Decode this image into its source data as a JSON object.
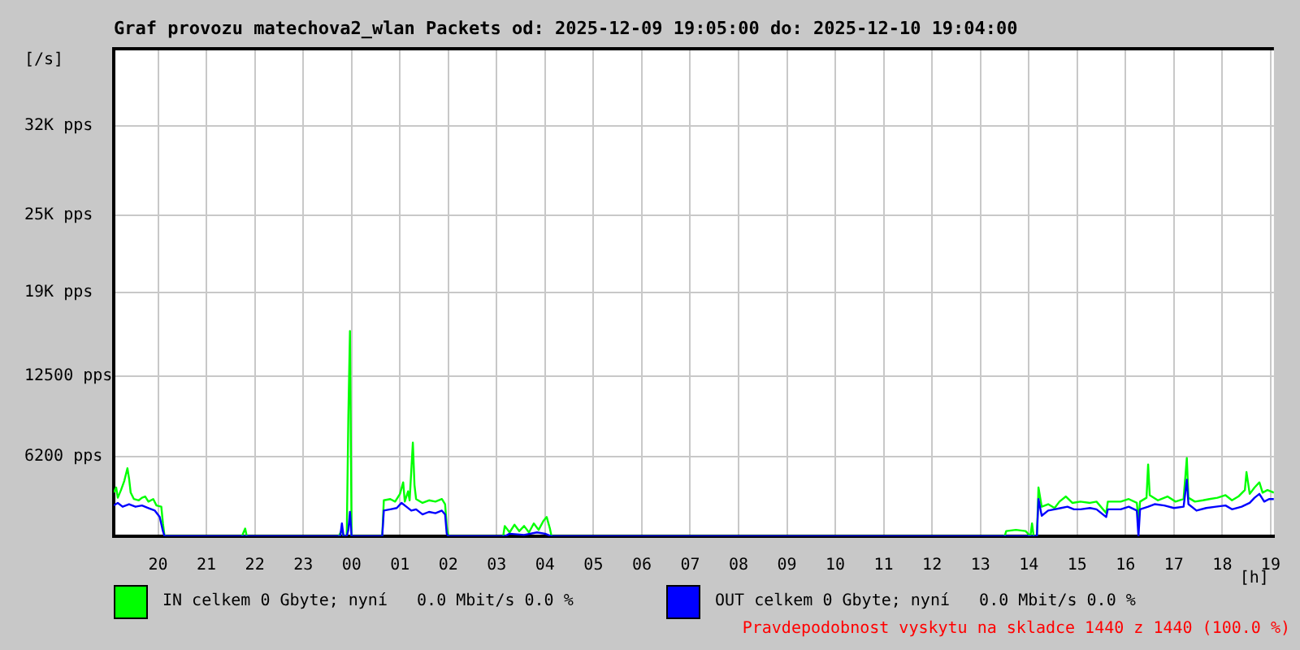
{
  "chart_data": {
    "type": "line",
    "title": "Graf provozu matechova2_wlan Packets od: 2025-12-09 19:05:00 do: 2025-12-10 19:04:00",
    "ylabel": "[/s]",
    "xlabel": "[h]",
    "xlim": [
      "2025-12-09T19:05",
      "2025-12-10T19:04"
    ],
    "xticks": [
      {
        "value": "2025-12-09T20:00",
        "label": "20"
      },
      {
        "value": "2025-12-09T21:00",
        "label": "21"
      },
      {
        "value": "2025-12-09T22:00",
        "label": "22"
      },
      {
        "value": "2025-12-09T23:00",
        "label": "23"
      },
      {
        "value": "2025-12-10T00:00",
        "label": "00"
      },
      {
        "value": "2025-12-10T01:00",
        "label": "01"
      },
      {
        "value": "2025-12-10T02:00",
        "label": "02"
      },
      {
        "value": "2025-12-10T03:00",
        "label": "03"
      },
      {
        "value": "2025-12-10T04:00",
        "label": "04"
      },
      {
        "value": "2025-12-10T05:00",
        "label": "05"
      },
      {
        "value": "2025-12-10T06:00",
        "label": "06"
      },
      {
        "value": "2025-12-10T07:00",
        "label": "07"
      },
      {
        "value": "2025-12-10T08:00",
        "label": "08"
      },
      {
        "value": "2025-12-10T09:00",
        "label": "09"
      },
      {
        "value": "2025-12-10T10:00",
        "label": "10"
      },
      {
        "value": "2025-12-10T11:00",
        "label": "11"
      },
      {
        "value": "2025-12-10T12:00",
        "label": "12"
      },
      {
        "value": "2025-12-10T13:00",
        "label": "13"
      },
      {
        "value": "2025-12-10T14:00",
        "label": "14"
      },
      {
        "value": "2025-12-10T15:00",
        "label": "15"
      },
      {
        "value": "2025-12-10T16:00",
        "label": "16"
      },
      {
        "value": "2025-12-10T17:00",
        "label": "17"
      },
      {
        "value": "2025-12-10T18:00",
        "label": "18"
      },
      {
        "value": "2025-12-10T19:00",
        "label": "19"
      }
    ],
    "ylim": [
      0,
      38000
    ],
    "yticks": [
      {
        "value": 6200,
        "label": "6200 pps"
      },
      {
        "value": 12500,
        "label": "12500 pps"
      },
      {
        "value": 19000,
        "label": "19K pps"
      },
      {
        "value": 25000,
        "label": "25K pps"
      },
      {
        "value": 32000,
        "label": "32K pps"
      }
    ],
    "grid": true,
    "legend": "bottom",
    "series": [
      {
        "name": "IN celkem 0 Gbyte; nyní   0.0 Mbit/s 0.0 %",
        "color": "#00ff00",
        "x": [
          "2025-12-09T19:05",
          "2025-12-09T19:08",
          "2025-12-09T19:10",
          "2025-12-09T19:14",
          "2025-12-09T19:18",
          "2025-12-09T19:22",
          "2025-12-09T19:24",
          "2025-12-09T19:26",
          "2025-12-09T19:30",
          "2025-12-09T19:36",
          "2025-12-09T19:40",
          "2025-12-09T19:44",
          "2025-12-09T19:48",
          "2025-12-09T19:54",
          "2025-12-09T19:58",
          "2025-12-09T20:04",
          "2025-12-09T20:06",
          "2025-12-09T20:08",
          "2025-12-09T21:44",
          "2025-12-09T21:48",
          "2025-12-09T21:50",
          "2025-12-09T23:44",
          "2025-12-09T23:48",
          "2025-12-09T23:50",
          "2025-12-09T23:54",
          "2025-12-09T23:56",
          "2025-12-09T23:58",
          "2025-12-10T00:00",
          "2025-12-10T00:38",
          "2025-12-10T00:40",
          "2025-12-10T00:48",
          "2025-12-10T00:54",
          "2025-12-10T01:00",
          "2025-12-10T01:04",
          "2025-12-10T01:06",
          "2025-12-10T01:10",
          "2025-12-10T01:12",
          "2025-12-10T01:16",
          "2025-12-10T01:18",
          "2025-12-10T01:20",
          "2025-12-10T01:28",
          "2025-12-10T01:36",
          "2025-12-10T01:44",
          "2025-12-10T01:52",
          "2025-12-10T01:56",
          "2025-12-10T01:58",
          "2025-12-10T02:00",
          "2025-12-10T03:08",
          "2025-12-10T03:10",
          "2025-12-10T03:16",
          "2025-12-10T03:22",
          "2025-12-10T03:28",
          "2025-12-10T03:34",
          "2025-12-10T03:40",
          "2025-12-10T03:46",
          "2025-12-10T03:52",
          "2025-12-10T03:58",
          "2025-12-10T04:02",
          "2025-12-10T04:06",
          "2025-12-10T04:08",
          "2025-12-10T13:30",
          "2025-12-10T13:32",
          "2025-12-10T13:44",
          "2025-12-10T13:56",
          "2025-12-10T14:02",
          "2025-12-10T14:04",
          "2025-12-10T14:06",
          "2025-12-10T14:10",
          "2025-12-10T14:12",
          "2025-12-10T14:16",
          "2025-12-10T14:24",
          "2025-12-10T14:32",
          "2025-12-10T14:38",
          "2025-12-10T14:46",
          "2025-12-10T14:54",
          "2025-12-10T15:04",
          "2025-12-10T15:16",
          "2025-12-10T15:24",
          "2025-12-10T15:36",
          "2025-12-10T15:38",
          "2025-12-10T15:54",
          "2025-12-10T16:04",
          "2025-12-10T16:14",
          "2025-12-10T16:16",
          "2025-12-10T16:18",
          "2025-12-10T16:26",
          "2025-12-10T16:28",
          "2025-12-10T16:30",
          "2025-12-10T16:40",
          "2025-12-10T16:52",
          "2025-12-10T17:02",
          "2025-12-10T17:12",
          "2025-12-10T17:16",
          "2025-12-10T17:18",
          "2025-12-10T17:26",
          "2025-12-10T17:36",
          "2025-12-10T17:44",
          "2025-12-10T17:54",
          "2025-12-10T18:04",
          "2025-12-10T18:12",
          "2025-12-10T18:20",
          "2025-12-10T18:28",
          "2025-12-10T18:30",
          "2025-12-10T18:34",
          "2025-12-10T18:40",
          "2025-12-10T18:46",
          "2025-12-10T18:50",
          "2025-12-10T18:56",
          "2025-12-10T19:04"
        ],
        "values": [
          3400,
          3800,
          3000,
          3600,
          4300,
          5300,
          4500,
          3400,
          2900,
          2800,
          3000,
          3100,
          2700,
          2900,
          2400,
          2300,
          1000,
          0,
          0,
          600,
          0,
          0,
          500,
          0,
          0,
          9400,
          16000,
          0,
          0,
          2800,
          2900,
          2700,
          3300,
          4200,
          2700,
          3500,
          2800,
          7300,
          4000,
          2900,
          2600,
          2800,
          2700,
          2900,
          2500,
          800,
          0,
          0,
          800,
          300,
          900,
          400,
          800,
          300,
          1000,
          500,
          1200,
          1500,
          600,
          0,
          0,
          400,
          500,
          400,
          0,
          1000,
          0,
          0,
          3800,
          2300,
          2500,
          2200,
          2700,
          3100,
          2600,
          2700,
          2600,
          2700,
          1800,
          2700,
          2700,
          2900,
          2600,
          1200,
          2700,
          3000,
          5600,
          3200,
          2800,
          3100,
          2700,
          2900,
          6100,
          3000,
          2700,
          2800,
          2900,
          3000,
          3200,
          2800,
          3100,
          3600,
          5000,
          3300,
          3800,
          4200,
          3400,
          3600,
          3400
        ]
      },
      {
        "name": "OUT celkem 0 Gbyte; nyní   0.0 Mbit/s 0.0 %",
        "color": "#0000ff",
        "x": [
          "2025-12-09T19:05",
          "2025-12-09T19:10",
          "2025-12-09T19:16",
          "2025-12-09T19:24",
          "2025-12-09T19:32",
          "2025-12-09T19:40",
          "2025-12-09T19:48",
          "2025-12-09T19:56",
          "2025-12-09T20:02",
          "2025-12-09T20:06",
          "2025-12-09T20:08",
          "2025-12-09T23:46",
          "2025-12-09T23:48",
          "2025-12-09T23:50",
          "2025-12-09T23:54",
          "2025-12-09T23:56",
          "2025-12-09T23:58",
          "2025-12-10T00:00",
          "2025-12-10T00:38",
          "2025-12-10T00:40",
          "2025-12-10T00:48",
          "2025-12-10T00:56",
          "2025-12-10T01:02",
          "2025-12-10T01:08",
          "2025-12-10T01:14",
          "2025-12-10T01:20",
          "2025-12-10T01:28",
          "2025-12-10T01:36",
          "2025-12-10T01:44",
          "2025-12-10T01:52",
          "2025-12-10T01:56",
          "2025-12-10T01:58",
          "2025-12-10T02:00",
          "2025-12-10T03:10",
          "2025-12-10T03:16",
          "2025-12-10T03:34",
          "2025-12-10T03:50",
          "2025-12-10T04:00",
          "2025-12-10T04:08",
          "2025-12-10T14:10",
          "2025-12-10T14:12",
          "2025-12-10T14:16",
          "2025-12-10T14:24",
          "2025-12-10T14:32",
          "2025-12-10T14:40",
          "2025-12-10T14:48",
          "2025-12-10T14:56",
          "2025-12-10T15:04",
          "2025-12-10T15:16",
          "2025-12-10T15:24",
          "2025-12-10T15:36",
          "2025-12-10T15:38",
          "2025-12-10T15:54",
          "2025-12-10T16:04",
          "2025-12-10T16:14",
          "2025-12-10T16:16",
          "2025-12-10T16:18",
          "2025-12-10T16:28",
          "2025-12-10T16:36",
          "2025-12-10T16:48",
          "2025-12-10T17:00",
          "2025-12-10T17:12",
          "2025-12-10T17:16",
          "2025-12-10T17:18",
          "2025-12-10T17:28",
          "2025-12-10T17:40",
          "2025-12-10T17:52",
          "2025-12-10T18:04",
          "2025-12-10T18:12",
          "2025-12-10T18:24",
          "2025-12-10T18:34",
          "2025-12-10T18:40",
          "2025-12-10T18:46",
          "2025-12-10T18:52",
          "2025-12-10T18:58",
          "2025-12-10T19:04"
        ],
        "values": [
          2400,
          2600,
          2300,
          2500,
          2300,
          2400,
          2200,
          2000,
          1500,
          400,
          0,
          0,
          1000,
          0,
          0,
          500,
          1900,
          0,
          0,
          2000,
          2100,
          2200,
          2600,
          2300,
          2000,
          2100,
          1700,
          1900,
          1800,
          2000,
          1700,
          200,
          0,
          0,
          200,
          100,
          300,
          200,
          0,
          0,
          2900,
          1600,
          2000,
          2100,
          2200,
          2300,
          2100,
          2100,
          2200,
          2100,
          1500,
          2100,
          2100,
          2300,
          2000,
          0,
          2100,
          2300,
          2500,
          2400,
          2200,
          2300,
          4400,
          2500,
          2000,
          2200,
          2300,
          2400,
          2100,
          2300,
          2600,
          3000,
          3300,
          2700,
          2900,
          2900
        ]
      }
    ],
    "annotations": [
      "Pravdepodobnost vyskytu na skladce 1440 z 1440 (100.0 %)"
    ]
  }
}
